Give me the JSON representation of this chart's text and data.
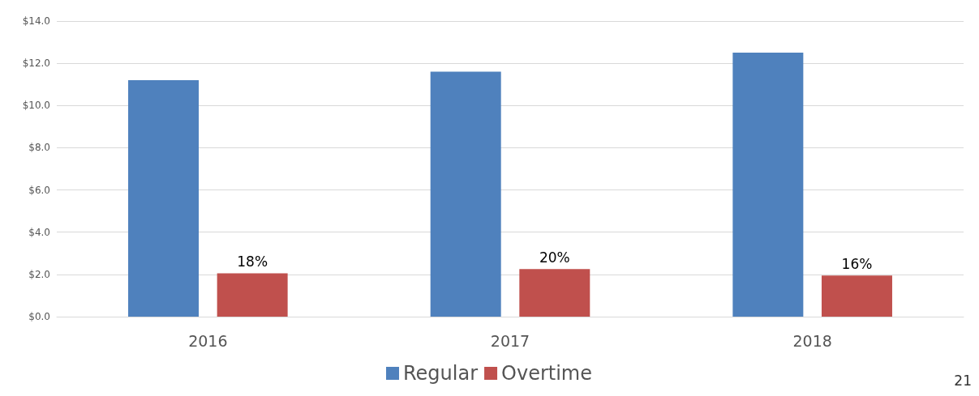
{
  "chart_data": {
    "type": "bar",
    "categories": [
      "2016",
      "2017",
      "2018"
    ],
    "series": [
      {
        "name": "Regular",
        "color": "#4f81bd",
        "values": [
          11.2,
          11.6,
          12.5
        ]
      },
      {
        "name": "Overtime",
        "color": "#c0504d",
        "values": [
          2.05,
          2.25,
          1.95
        ]
      }
    ],
    "ylim": [
      0,
      14
    ],
    "yticks": [
      {
        "value": 0,
        "label": "$0.0"
      },
      {
        "value": 2,
        "label": "$2.0"
      },
      {
        "value": 4,
        "label": "$4.0"
      },
      {
        "value": 6,
        "label": "$6.0"
      },
      {
        "value": 8,
        "label": "$8.0"
      },
      {
        "value": 10,
        "label": "$10.0"
      },
      {
        "value": 12,
        "label": "$12.0"
      },
      {
        "value": 14,
        "label": "$14.0"
      }
    ],
    "grid": "y",
    "legend": "bottom",
    "annotations": [
      "18%",
      "20%",
      "16%",
      "21"
    ]
  }
}
